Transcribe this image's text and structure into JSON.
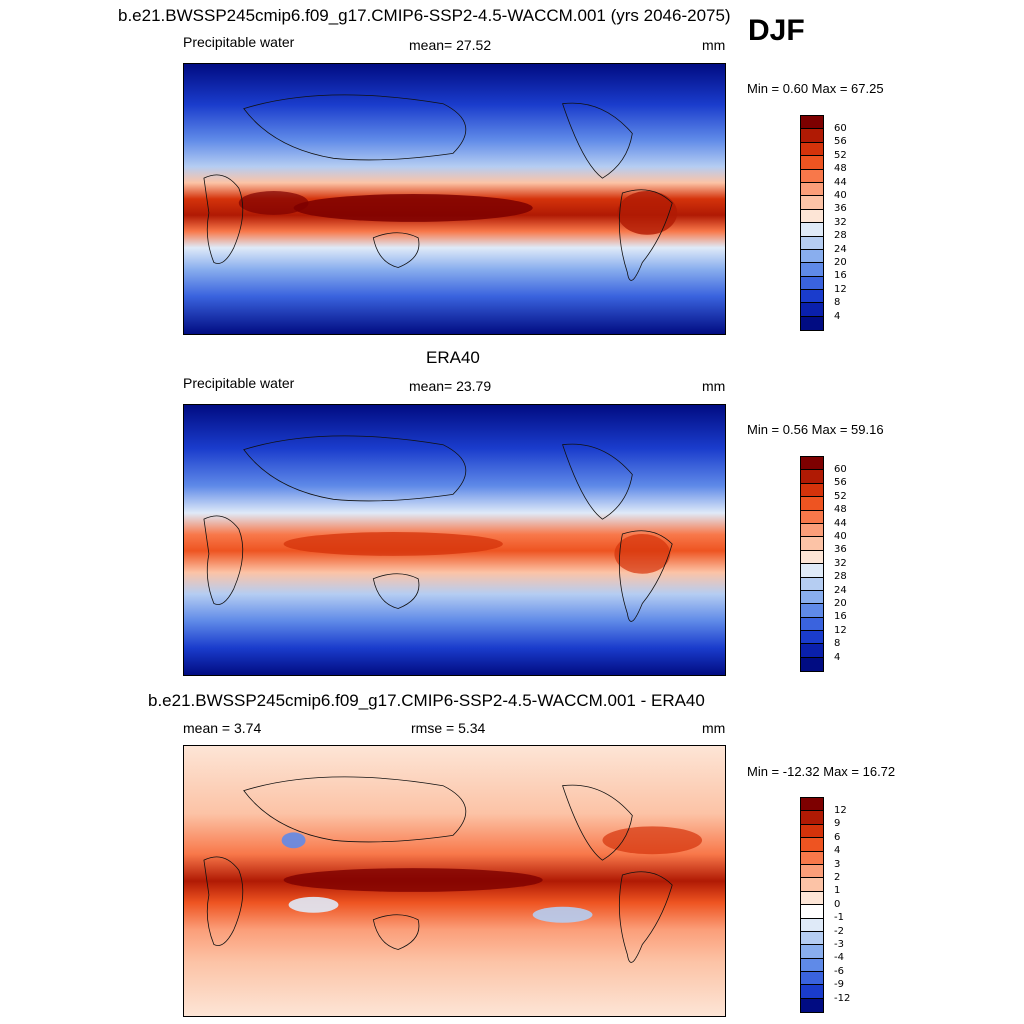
{
  "season": "DJF",
  "panels": [
    {
      "title": "b.e21.BWSSP245cmip6.f09_g17.CMIP6-SSP2-4.5-WACCM.001 (yrs 2046-2075)",
      "left_label": "Precipitable water",
      "center_label": "mean=  27.52",
      "units": "mm",
      "minmax": "Min =   0.60 Max =  67.25",
      "colorbar_ticks": [
        "60",
        "56",
        "52",
        "48",
        "44",
        "40",
        "36",
        "32",
        "28",
        "24",
        "20",
        "16",
        "12",
        "8",
        "4"
      ]
    },
    {
      "title": "ERA40",
      "left_label": "Precipitable water",
      "center_label": "mean=  23.79",
      "units": "mm",
      "minmax": "Min =   0.56 Max =  59.16",
      "colorbar_ticks": [
        "60",
        "56",
        "52",
        "48",
        "44",
        "40",
        "36",
        "32",
        "28",
        "24",
        "20",
        "16",
        "12",
        "8",
        "4"
      ]
    },
    {
      "title": "b.e21.BWSSP245cmip6.f09_g17.CMIP6-SSP2-4.5-WACCM.001 - ERA40",
      "left_label": "mean =   3.74",
      "center_label": "rmse =   5.34",
      "units": "mm",
      "minmax": "Min = -12.32 Max =  16.72",
      "colorbar_ticks": [
        "12",
        "9",
        "6",
        "4",
        "3",
        "2",
        "1",
        "0",
        "-1",
        "-2",
        "-3",
        "-4",
        "-6",
        "-9",
        "-12"
      ]
    }
  ],
  "colors": {
    "abs_scale": [
      "#7d0000",
      "#b01a04",
      "#d4330b",
      "#ee5421",
      "#f8784a",
      "#fb9e79",
      "#fcc3a6",
      "#fde5d6",
      "#dfeaf8",
      "#b5cdf2",
      "#89aeee",
      "#5f8ae8",
      "#3a63de",
      "#1a3ccc",
      "#0a20ac",
      "#010c82"
    ],
    "diff_scale": [
      "#7d0000",
      "#b01a04",
      "#d4330b",
      "#ee5421",
      "#f8784a",
      "#fb9e79",
      "#fcc3a6",
      "#fde5d6",
      "#ffffff",
      "#dfeaf8",
      "#b5cdf2",
      "#89aeee",
      "#5f8ae8",
      "#3a63de",
      "#1a3ccc",
      "#010c82"
    ]
  }
}
